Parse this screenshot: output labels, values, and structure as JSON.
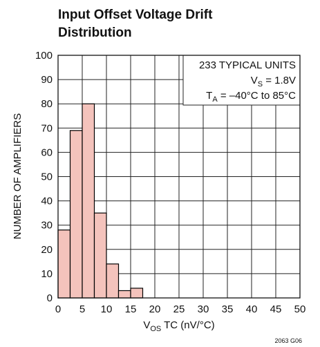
{
  "chart_data": {
    "type": "histogram",
    "title": [
      "Input Offset Voltage Drift",
      "Distribution"
    ],
    "y_label": "NUMBER OF AMPLIFIERS",
    "x_label": {
      "main": "V",
      "sub": "OS",
      "tail": " TC (nV/°C)"
    },
    "annotations": [
      {
        "main": "233 TYPICAL UNITS"
      },
      {
        "main": "V",
        "sub": "S",
        "tail": " = 1.8V"
      },
      {
        "main": "T",
        "sub": "A",
        "tail": " = –40°C to 85°C"
      }
    ],
    "footnote": "2063 G06",
    "bins": [
      0,
      2.5,
      5,
      7.5,
      10,
      12.5,
      15,
      17.5
    ],
    "counts": [
      28,
      69,
      80,
      35,
      14,
      3,
      4
    ],
    "color": "#f4c3bc",
    "edge_color": "#000000",
    "xlim": [
      0,
      50
    ],
    "xticks": [
      0,
      5,
      10,
      15,
      20,
      25,
      30,
      35,
      40,
      45,
      50
    ],
    "ylim": [
      0,
      100
    ],
    "yticks": [
      0,
      10,
      20,
      30,
      40,
      50,
      60,
      70,
      80,
      90,
      100
    ],
    "grid": true
  }
}
